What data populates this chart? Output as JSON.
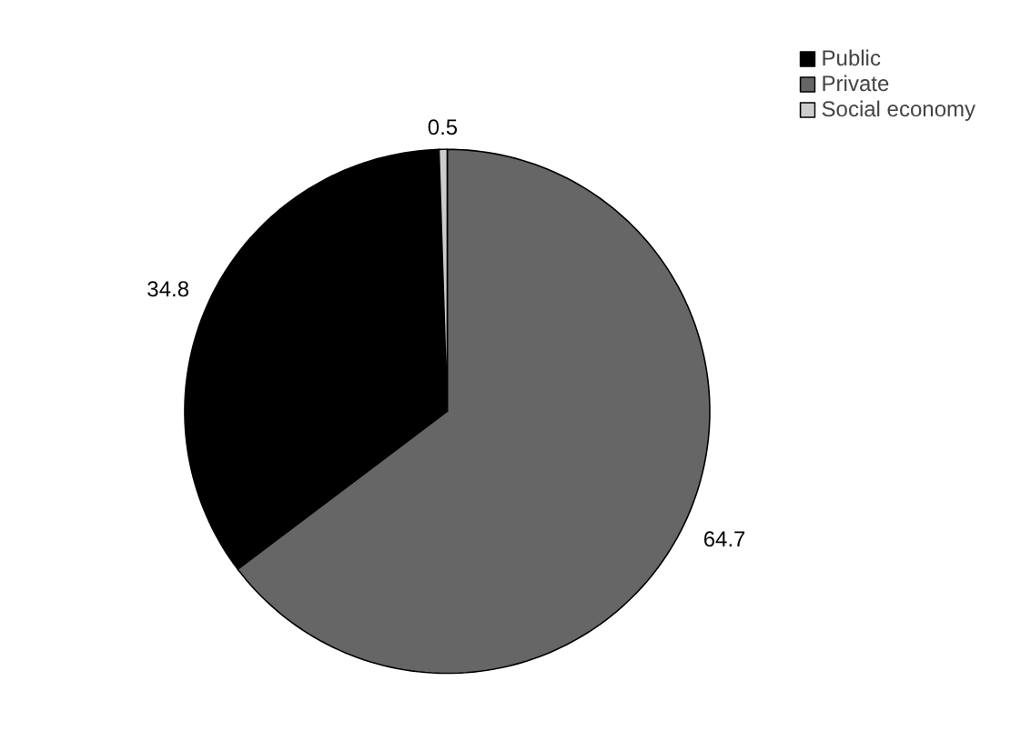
{
  "chart_data": {
    "type": "pie",
    "categories": [
      "Public",
      "Private",
      "Social economy"
    ],
    "values": [
      34.8,
      64.7,
      0.5
    ],
    "colors": [
      "#000000",
      "#666666",
      "#cccccc"
    ],
    "data_labels": true,
    "legend": "top right"
  }
}
